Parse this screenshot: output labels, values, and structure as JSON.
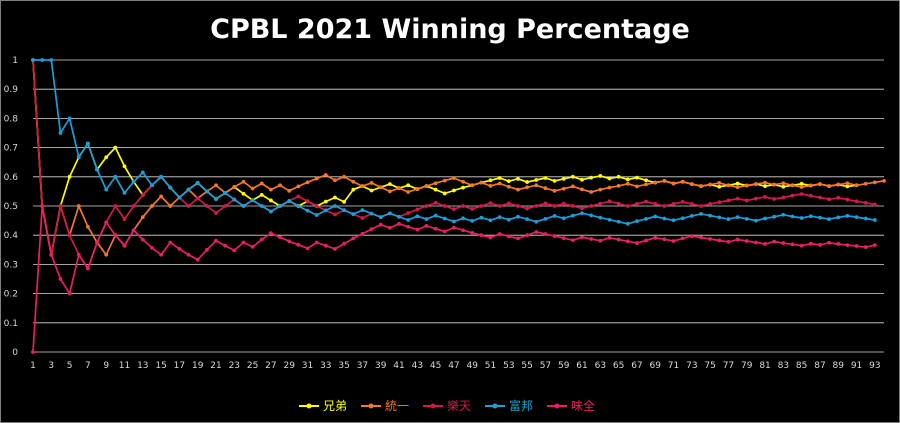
{
  "chart_data": {
    "type": "line",
    "title": "CPBL 2021 Winning Percentage",
    "xlabel": "",
    "ylabel": "",
    "ylim": [
      0,
      1
    ],
    "xlim": [
      1,
      94
    ],
    "y_ticks": [
      "0",
      "0.1",
      "0.2",
      "0.3",
      "0.4",
      "0.5",
      "0.6",
      "0.7",
      "0.8",
      "0.9",
      "1"
    ],
    "x_ticks": [
      "1",
      "3",
      "5",
      "7",
      "9",
      "11",
      "13",
      "15",
      "17",
      "19",
      "21",
      "23",
      "25",
      "27",
      "29",
      "31",
      "33",
      "35",
      "37",
      "39",
      "41",
      "43",
      "45",
      "47",
      "49",
      "51",
      "53",
      "55",
      "57",
      "59",
      "61",
      "63",
      "65",
      "67",
      "69",
      "71",
      "73",
      "75",
      "77",
      "79",
      "81",
      "83",
      "85",
      "87",
      "89",
      "91",
      "93"
    ],
    "grid": true,
    "legend": "bottom",
    "series": [
      {
        "name": "兄弟",
        "color": "#ffff00",
        "values": [
          1,
          0.5,
          0.333,
          0.5,
          0.6,
          0.667,
          0.714,
          0.625,
          0.667,
          0.7,
          0.636,
          0.583,
          0.538,
          0.571,
          0.6,
          0.563,
          0.529,
          0.556,
          0.579,
          0.55,
          0.524,
          0.545,
          0.565,
          0.542,
          0.52,
          0.538,
          0.519,
          0.5,
          0.517,
          0.5,
          0.516,
          0.5,
          0.515,
          0.529,
          0.514,
          0.556,
          0.568,
          0.553,
          0.564,
          0.575,
          0.561,
          0.571,
          0.558,
          0.568,
          0.556,
          0.543,
          0.553,
          0.563,
          0.571,
          0.58,
          0.588,
          0.596,
          0.585,
          0.593,
          0.582,
          0.589,
          0.596,
          0.586,
          0.593,
          0.6,
          0.59,
          0.597,
          0.603,
          0.594,
          0.6,
          0.591,
          0.597,
          0.588,
          0.58,
          0.586,
          0.577,
          0.583,
          0.575,
          0.568,
          0.573,
          0.566,
          0.571,
          0.577,
          0.57,
          0.575,
          0.568,
          0.573,
          0.566,
          0.571,
          0.576,
          0.57,
          0.575,
          0.568,
          0.573,
          0.567,
          0.571
        ]
      },
      {
        "name": "統一",
        "color": "#f4772c",
        "values": [
          1,
          0.5,
          0.333,
          0.5,
          0.4,
          0.5,
          0.429,
          0.375,
          0.333,
          0.4,
          0.364,
          0.417,
          0.462,
          0.5,
          0.533,
          0.5,
          0.529,
          0.556,
          0.526,
          0.55,
          0.571,
          0.545,
          0.565,
          0.583,
          0.56,
          0.577,
          0.556,
          0.571,
          0.552,
          0.567,
          0.581,
          0.594,
          0.606,
          0.588,
          0.6,
          0.583,
          0.568,
          0.579,
          0.564,
          0.55,
          0.561,
          0.548,
          0.558,
          0.568,
          0.578,
          0.587,
          0.596,
          0.583,
          0.571,
          0.58,
          0.569,
          0.577,
          0.566,
          0.556,
          0.564,
          0.571,
          0.561,
          0.552,
          0.559,
          0.567,
          0.557,
          0.548,
          0.556,
          0.563,
          0.569,
          0.576,
          0.567,
          0.574,
          0.58,
          0.586,
          0.577,
          0.583,
          0.575,
          0.568,
          0.573,
          0.579,
          0.571,
          0.564,
          0.57,
          0.575,
          0.58,
          0.573,
          0.578,
          0.571,
          0.565,
          0.57,
          0.575,
          0.568,
          0.573,
          0.578,
          0.571,
          0.576,
          0.581,
          0.586
        ]
      },
      {
        "name": "樂天",
        "color": "#d2194a",
        "values": [
          1,
          0.5,
          0.333,
          0.5,
          0.4,
          0.333,
          0.286,
          0.375,
          0.444,
          0.5,
          0.455,
          0.5,
          0.538,
          0.571,
          0.6,
          0.563,
          0.529,
          0.5,
          0.526,
          0.5,
          0.476,
          0.5,
          0.522,
          0.5,
          0.52,
          0.5,
          0.481,
          0.5,
          0.517,
          0.533,
          0.516,
          0.5,
          0.485,
          0.471,
          0.486,
          0.472,
          0.459,
          0.474,
          0.462,
          0.475,
          0.463,
          0.476,
          0.488,
          0.5,
          0.511,
          0.5,
          0.489,
          0.5,
          0.49,
          0.5,
          0.51,
          0.5,
          0.509,
          0.5,
          0.491,
          0.5,
          0.509,
          0.5,
          0.508,
          0.5,
          0.492,
          0.5,
          0.508,
          0.516,
          0.508,
          0.5,
          0.507,
          0.515,
          0.507,
          0.5,
          0.507,
          0.514,
          0.507,
          0.5,
          0.507,
          0.513,
          0.519,
          0.525,
          0.519,
          0.525,
          0.531,
          0.524,
          0.529,
          0.536,
          0.541,
          0.535,
          0.529,
          0.523,
          0.528,
          0.522,
          0.516,
          0.511,
          0.505
        ]
      },
      {
        "name": "富邦",
        "color": "#1c9ed9",
        "values": [
          1,
          1,
          1,
          0.75,
          0.8,
          0.667,
          0.714,
          0.625,
          0.556,
          0.6,
          0.545,
          0.583,
          0.615,
          0.571,
          0.6,
          0.563,
          0.529,
          0.556,
          0.579,
          0.55,
          0.524,
          0.545,
          0.522,
          0.5,
          0.52,
          0.5,
          0.481,
          0.5,
          0.517,
          0.5,
          0.484,
          0.469,
          0.485,
          0.5,
          0.486,
          0.472,
          0.486,
          0.474,
          0.462,
          0.475,
          0.463,
          0.452,
          0.465,
          0.455,
          0.467,
          0.457,
          0.447,
          0.458,
          0.449,
          0.46,
          0.451,
          0.462,
          0.453,
          0.463,
          0.455,
          0.446,
          0.456,
          0.466,
          0.458,
          0.467,
          0.475,
          0.468,
          0.46,
          0.453,
          0.446,
          0.439,
          0.448,
          0.456,
          0.464,
          0.457,
          0.451,
          0.458,
          0.466,
          0.473,
          0.467,
          0.461,
          0.455,
          0.462,
          0.456,
          0.45,
          0.457,
          0.463,
          0.47,
          0.464,
          0.459,
          0.465,
          0.46,
          0.455,
          0.461,
          0.466,
          0.462,
          0.457,
          0.452
        ]
      },
      {
        "name": "味全",
        "color": "#e91e63",
        "values": [
          0,
          0.5,
          0.333,
          0.25,
          0.2,
          0.333,
          0.286,
          0.375,
          0.444,
          0.4,
          0.364,
          0.417,
          0.385,
          0.357,
          0.333,
          0.375,
          0.353,
          0.333,
          0.316,
          0.35,
          0.381,
          0.364,
          0.348,
          0.375,
          0.36,
          0.385,
          0.407,
          0.393,
          0.379,
          0.367,
          0.355,
          0.375,
          0.364,
          0.353,
          0.371,
          0.389,
          0.405,
          0.421,
          0.436,
          0.425,
          0.439,
          0.429,
          0.419,
          0.432,
          0.422,
          0.413,
          0.426,
          0.417,
          0.408,
          0.4,
          0.392,
          0.404,
          0.396,
          0.389,
          0.4,
          0.411,
          0.404,
          0.397,
          0.39,
          0.383,
          0.393,
          0.387,
          0.381,
          0.391,
          0.385,
          0.379,
          0.373,
          0.382,
          0.391,
          0.386,
          0.38,
          0.389,
          0.397,
          0.392,
          0.387,
          0.382,
          0.377,
          0.385,
          0.38,
          0.375,
          0.37,
          0.378,
          0.373,
          0.369,
          0.364,
          0.371,
          0.367,
          0.374,
          0.37,
          0.366,
          0.363,
          0.359,
          0.366
        ]
      }
    ]
  }
}
